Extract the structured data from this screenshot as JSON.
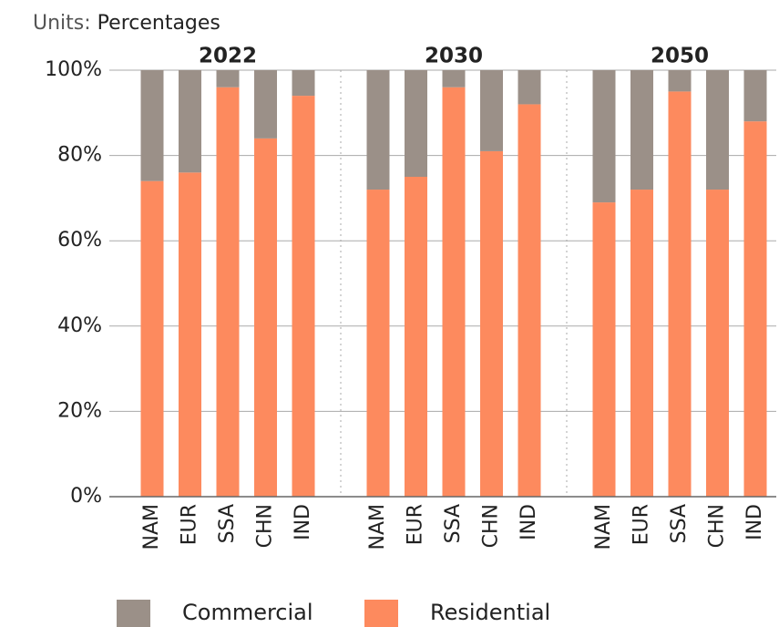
{
  "units": {
    "label": "Units:",
    "value": "Percentages"
  },
  "chart_data": [
    {
      "type": "stacked_bar",
      "title": "2022",
      "categories": [
        "NAM",
        "EUR",
        "SSA",
        "CHN",
        "IND"
      ],
      "series": [
        {
          "name": "Residential",
          "color": "#fd8a5e",
          "values": [
            74,
            76,
            96,
            84,
            94
          ]
        },
        {
          "name": "Commercial",
          "color": "#9b9088",
          "values": [
            26,
            24,
            4,
            16,
            6
          ]
        }
      ],
      "ylim": [
        0,
        100
      ],
      "yticks": [
        {
          "value": 0,
          "label": "0%"
        },
        {
          "value": 20,
          "label": "20%"
        },
        {
          "value": 40,
          "label": "40%"
        },
        {
          "value": 60,
          "label": "60%"
        },
        {
          "value": 80,
          "label": "80%"
        },
        {
          "value": 100,
          "label": "100%"
        }
      ],
      "grid": true
    },
    {
      "type": "stacked_bar",
      "title": "2030",
      "categories": [
        "NAM",
        "EUR",
        "SSA",
        "CHN",
        "IND"
      ],
      "series": [
        {
          "name": "Residential",
          "color": "#fd8a5e",
          "values": [
            72,
            75,
            96,
            81,
            92
          ]
        },
        {
          "name": "Commercial",
          "color": "#9b9088",
          "values": [
            28,
            25,
            4,
            19,
            8
          ]
        }
      ]
    },
    {
      "type": "stacked_bar",
      "title": "2050",
      "categories": [
        "NAM",
        "EUR",
        "SSA",
        "CHN",
        "IND"
      ],
      "series": [
        {
          "name": "Residential",
          "color": "#fd8a5e",
          "values": [
            69,
            72,
            95,
            72,
            88
          ]
        },
        {
          "name": "Commercial",
          "color": "#9b9088",
          "values": [
            31,
            28,
            5,
            28,
            12
          ]
        }
      ]
    }
  ]
}
